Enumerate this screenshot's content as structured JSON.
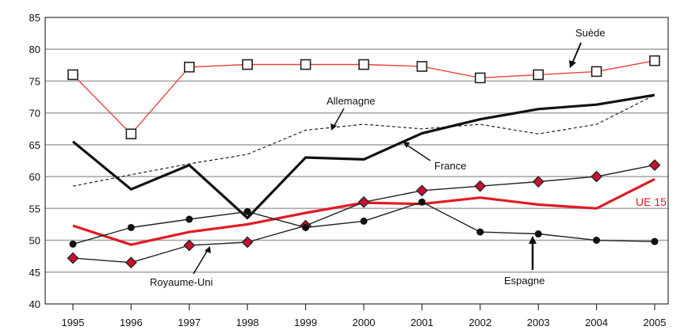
{
  "chart_data": {
    "type": "line",
    "x": [
      "1995",
      "1996",
      "1997",
      "1998",
      "1999",
      "2000",
      "2001",
      "2002",
      "2003",
      "2004",
      "2005"
    ],
    "ylim": [
      40,
      85
    ],
    "yticks": [
      40,
      45,
      50,
      55,
      60,
      65,
      70,
      75,
      80,
      85
    ],
    "grid": true,
    "series": [
      {
        "name": "Suède",
        "color": "#e8453c",
        "marker": "square-open",
        "style": "solid-thin",
        "values": [
          76.0,
          66.7,
          77.2,
          77.6,
          77.6,
          77.6,
          77.3,
          75.5,
          76.0,
          76.5,
          78.2
        ]
      },
      {
        "name": "Allemagne",
        "color": "#222222",
        "marker": "none",
        "style": "dashed",
        "values": [
          58.5,
          60.3,
          62.0,
          63.5,
          67.3,
          68.2,
          67.5,
          68.2,
          66.7,
          68.2,
          72.8
        ]
      },
      {
        "name": "France",
        "color": "#111111",
        "marker": "none",
        "style": "solid-thick",
        "values": [
          65.5,
          58.0,
          61.8,
          53.5,
          63.0,
          62.7,
          66.8,
          69.0,
          70.6,
          71.3,
          72.8
        ]
      },
      {
        "name": "UE 15",
        "color": "#e01b24",
        "marker": "none",
        "style": "solid-thick",
        "values": [
          52.3,
          49.3,
          51.3,
          52.5,
          54.3,
          55.9,
          55.7,
          56.7,
          55.6,
          55.0,
          59.6
        ]
      },
      {
        "name": "Royaume-Uni",
        "color": "#222222",
        "marker": "diamond-red",
        "style": "solid-thin",
        "values": [
          47.2,
          46.5,
          49.2,
          49.7,
          52.3,
          56.0,
          57.8,
          58.5,
          59.2,
          60.0,
          61.8
        ]
      },
      {
        "name": "Espagne",
        "color": "#222222",
        "marker": "dot",
        "style": "solid-thin",
        "values": [
          49.4,
          52.0,
          53.3,
          54.5,
          52.0,
          53.0,
          56.0,
          51.3,
          51.0,
          50.0,
          49.8
        ]
      }
    ],
    "annotations": [
      "Suède",
      "Allemagne",
      "France",
      "UE 15",
      "Royaume-Uni",
      "Espagne"
    ]
  }
}
